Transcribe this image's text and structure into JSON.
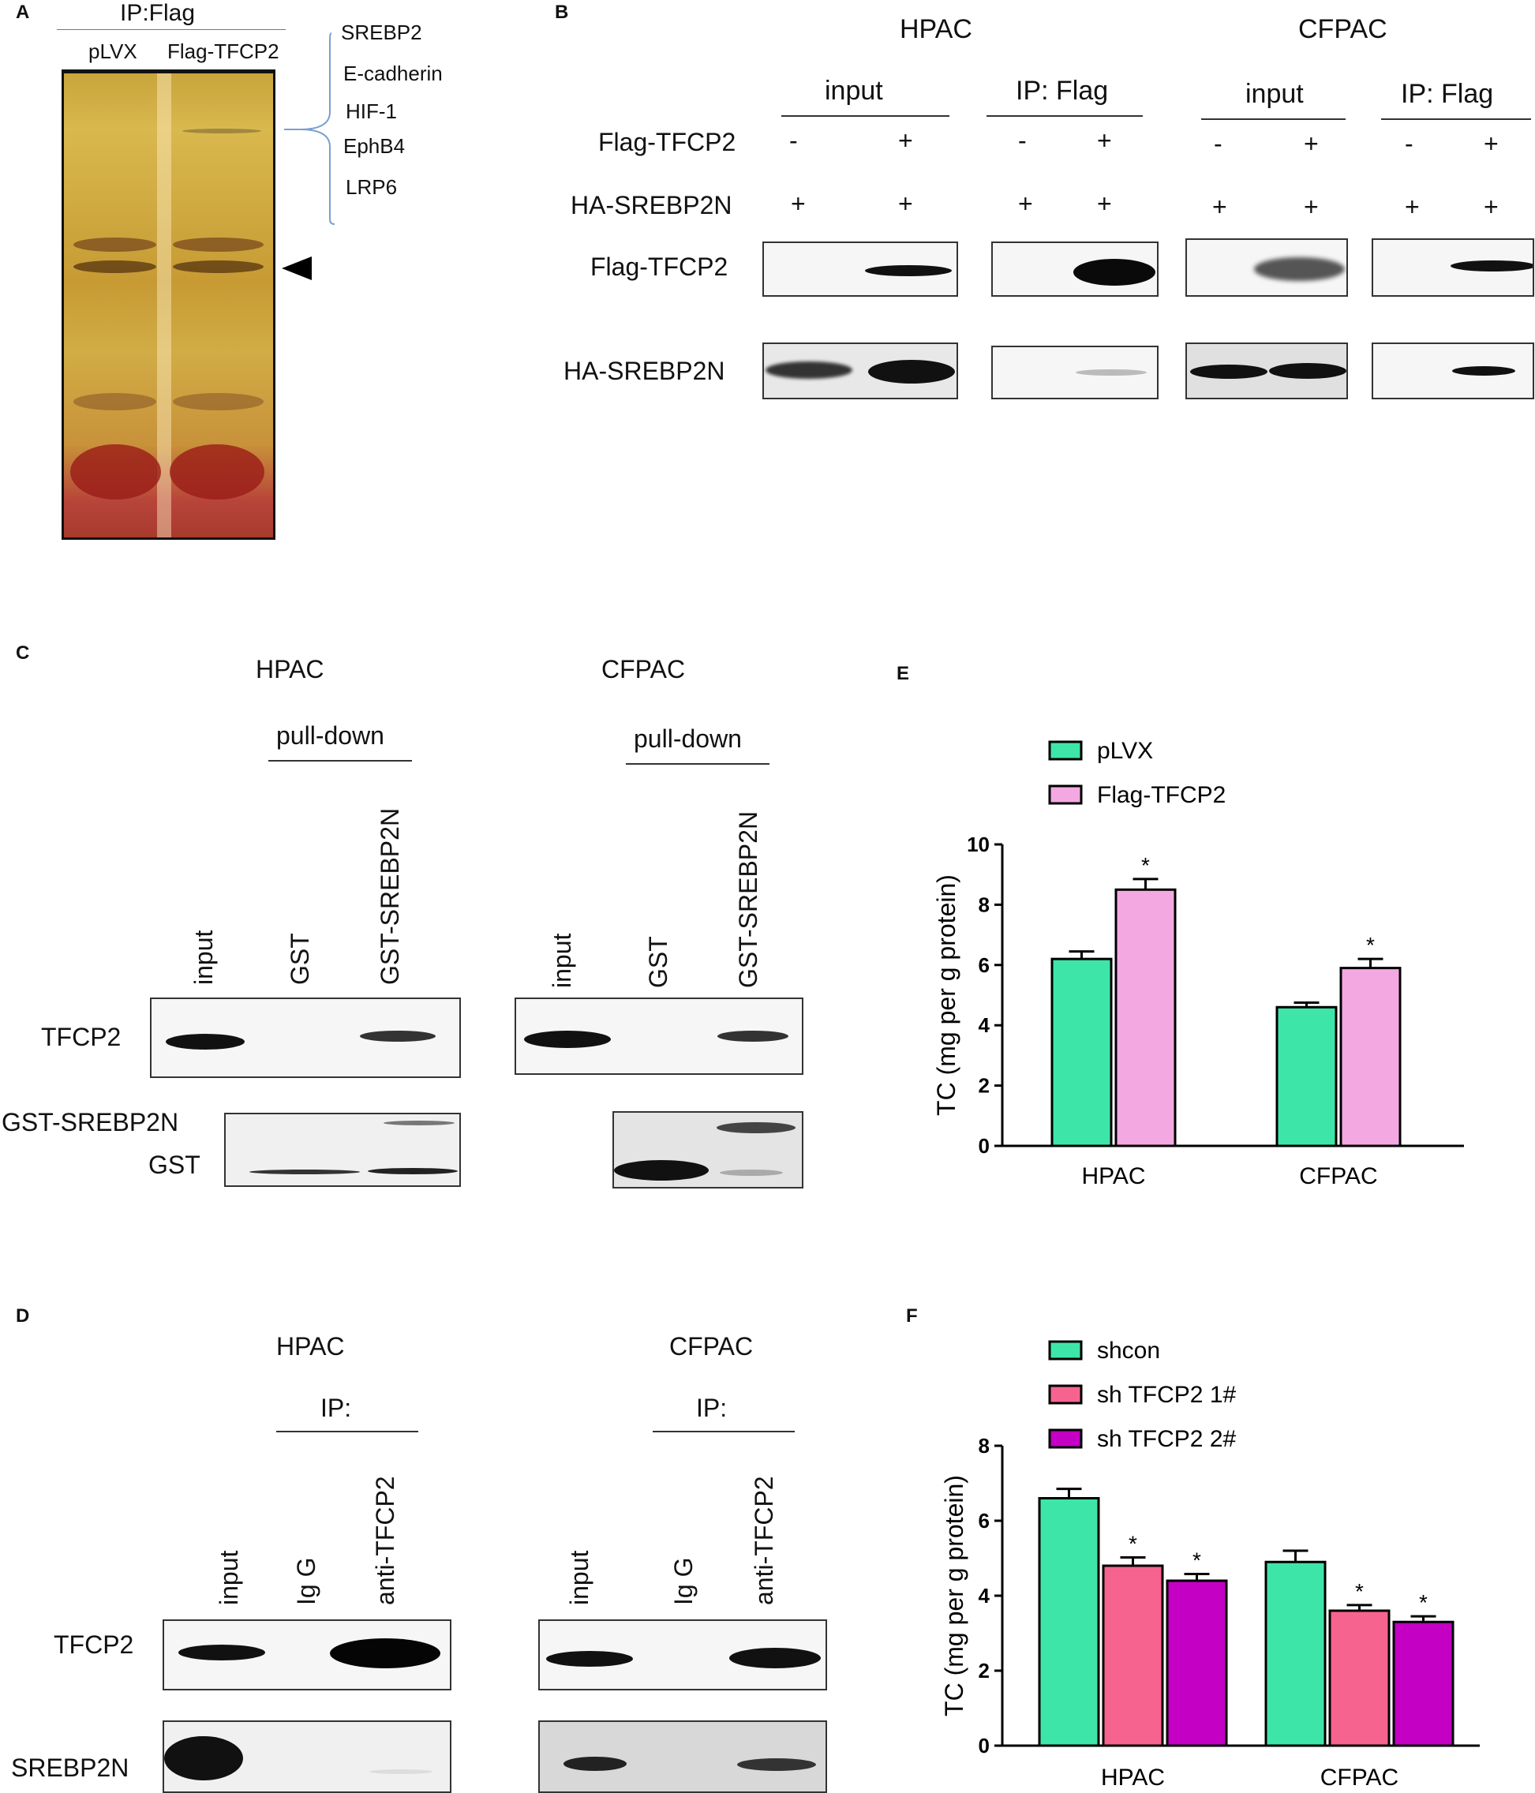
{
  "panelA": {
    "label": "A",
    "title": "IP:Flag",
    "lanes": [
      "pLVX",
      "Flag-TFCP2"
    ],
    "proteins": [
      "SREBP2",
      "E-cadherin",
      "HIF-1",
      "EphB4",
      "LRP6"
    ],
    "arrow": "arrowhead-icon"
  },
  "panelB": {
    "label": "B",
    "cells": [
      "HPAC",
      "CFPAC"
    ],
    "groups": [
      "input",
      "IP: Flag",
      "input",
      "IP: Flag"
    ],
    "rows": [
      "Flag-TFCP2",
      "HA-SREBP2N"
    ],
    "flag_signs": [
      "-",
      "+",
      "-",
      "+",
      "-",
      "+",
      "-",
      "+"
    ],
    "ha_signs": [
      "+",
      "+",
      "+",
      "+",
      "+",
      "+",
      "+",
      "+"
    ],
    "blots": [
      "Flag-TFCP2",
      "HA-SREBP2N"
    ]
  },
  "panelC": {
    "label": "C",
    "cells": [
      "HPAC",
      "CFPAC"
    ],
    "header": "pull-down",
    "lanes": [
      "input",
      "GST",
      "GST-SREBP2N"
    ],
    "rows": [
      "TFCP2",
      "GST-SREBP2N",
      "GST"
    ]
  },
  "panelD": {
    "label": "D",
    "cells": [
      "HPAC",
      "CFPAC"
    ],
    "header": "IP:",
    "lanes": [
      "input",
      "Ig G",
      "anti-TFCP2"
    ],
    "rows": [
      "TFCP2",
      "SREBP2N"
    ]
  },
  "chart_data": [
    {
      "panel": "E",
      "type": "bar",
      "categories": [
        "HPAC",
        "CFPAC"
      ],
      "series": [
        {
          "name": "pLVX",
          "color": "#3de6a8",
          "values": [
            6.2,
            4.6
          ],
          "errors": [
            0.25,
            0.15
          ],
          "sig": [
            false,
            false
          ]
        },
        {
          "name": "Flag-TFCP2",
          "color": "#f4a8e2",
          "values": [
            8.5,
            5.9
          ],
          "errors": [
            0.35,
            0.3
          ],
          "sig": [
            true,
            true
          ]
        }
      ],
      "ylabel": "TC (mg per g protein)",
      "ylim": [
        0,
        10
      ],
      "yticks": [
        0,
        2,
        4,
        6,
        8,
        10
      ],
      "legend": "top-left",
      "sig_label": "*"
    },
    {
      "panel": "F",
      "type": "bar",
      "categories": [
        "HPAC",
        "CFPAC"
      ],
      "series": [
        {
          "name": "shcon",
          "color": "#3de6a8",
          "values": [
            6.6,
            4.9
          ],
          "errors": [
            0.25,
            0.3
          ],
          "sig": [
            false,
            false
          ]
        },
        {
          "name": "sh TFCP2   1#",
          "color": "#f7638f",
          "values": [
            4.8,
            3.6
          ],
          "errors": [
            0.22,
            0.15
          ],
          "sig": [
            true,
            true
          ]
        },
        {
          "name": "sh TFCP2   2#",
          "color": "#c400c4",
          "values": [
            4.4,
            3.3
          ],
          "errors": [
            0.18,
            0.15
          ],
          "sig": [
            true,
            true
          ]
        }
      ],
      "ylabel": "TC (mg per g protein)",
      "ylim": [
        0,
        8
      ],
      "yticks": [
        0,
        2,
        4,
        6,
        8
      ],
      "legend": "top-left",
      "sig_label": "*"
    }
  ]
}
